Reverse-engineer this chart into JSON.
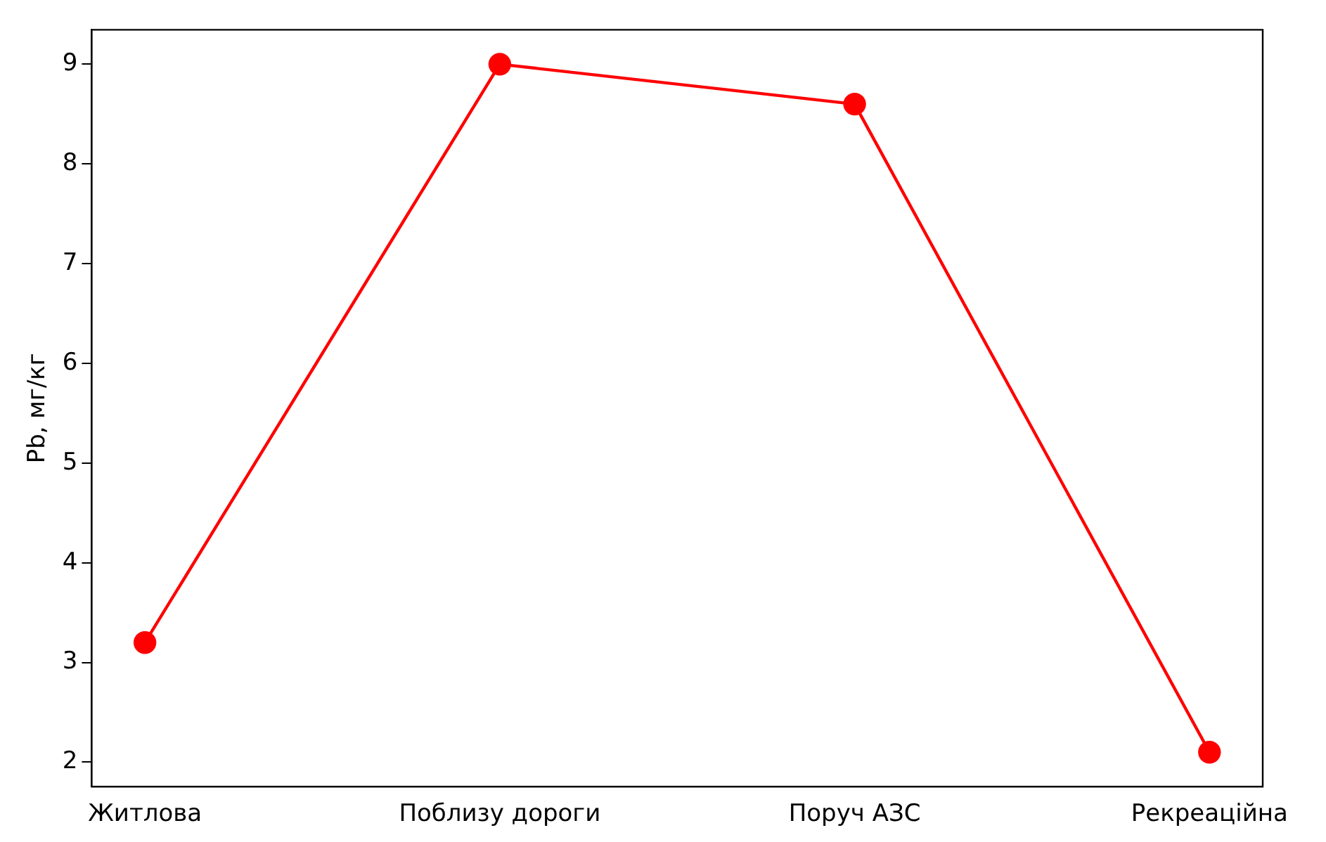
{
  "chart_data": {
    "type": "line",
    "ylabel": "Pb, мг/кг",
    "categories": [
      "Житлова",
      "Поблизу дороги",
      "Поруч АЗС",
      "Рекреаційна"
    ],
    "series": [
      {
        "color": "#ff0000",
        "values": [
          3.2,
          9.0,
          8.6,
          2.1
        ]
      }
    ],
    "ylim": [
      1.755,
      9.345
    ],
    "yticks": [
      2,
      3,
      4,
      5,
      6,
      7,
      8,
      9
    ],
    "grid": false,
    "legend": false,
    "marker": "circle",
    "line_style": "solid"
  }
}
